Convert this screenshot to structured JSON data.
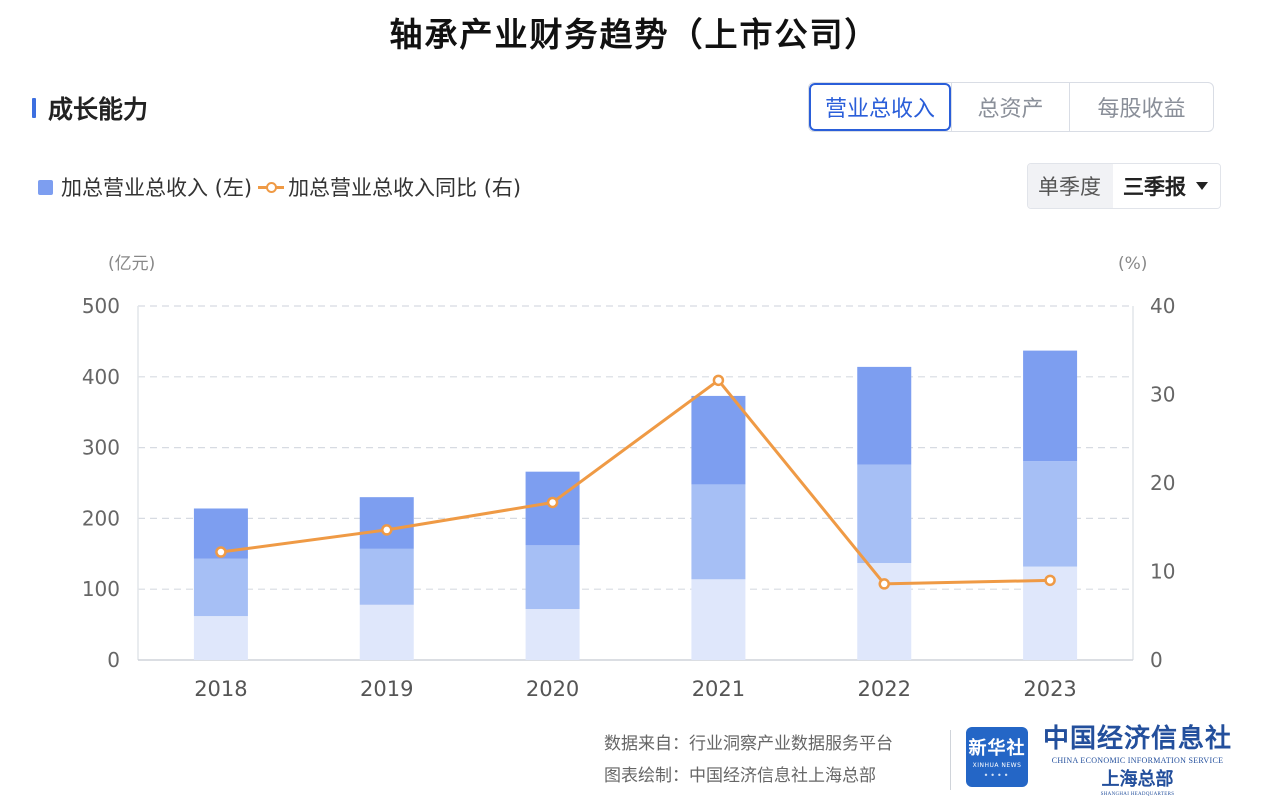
{
  "page": {
    "title": "轴承产业财务趋势（上市公司）",
    "section_title": "成长能力",
    "tabs": [
      {
        "label": "营业总收入",
        "active": true
      },
      {
        "label": "总资产",
        "active": false
      },
      {
        "label": "每股收益",
        "active": false
      }
    ],
    "period_label": "单季度",
    "period_selected": "三季报"
  },
  "colors": {
    "bar_q3": "#7d9ef0",
    "bar_q2": "#a6bff5",
    "bar_q1": "#dfe7fb",
    "line": "#ef9a45",
    "accent": "#2a5ed9"
  },
  "chart_data": {
    "type": "bar",
    "categories": [
      "2018",
      "2019",
      "2020",
      "2021",
      "2022",
      "2023"
    ],
    "series": [
      {
        "name": "加总营业总收入 (左)",
        "type": "stacked-bar",
        "axis": "left",
        "stack_totals": [
          [
            62,
            143,
            214
          ],
          [
            78,
            157,
            230
          ],
          [
            72,
            162,
            266
          ],
          [
            114,
            248,
            373
          ],
          [
            137,
            276,
            414
          ],
          [
            132,
            281,
            437
          ]
        ]
      },
      {
        "name": "加总营业总收入同比 (右)",
        "type": "line",
        "axis": "right",
        "values": [
          12.2,
          14.7,
          17.8,
          31.6,
          8.6,
          9.0
        ]
      }
    ],
    "legend": [
      "加总营业总收入 (左)",
      "加总营业总收入同比 (右)"
    ],
    "y_left": {
      "unit": "(亿元)",
      "min": 0,
      "max": 500,
      "ticks": [
        "0",
        "100",
        "200",
        "300",
        "400",
        "500"
      ]
    },
    "y_right": {
      "unit": "(%)",
      "min": 0,
      "max": 40,
      "ticks": [
        "0",
        "10",
        "20",
        "30",
        "40"
      ]
    },
    "grid": true
  },
  "footer": {
    "source_line": "数据来自：行业洞察产业数据服务平台",
    "credit_line": "图表绘制：中国经济信息社上海总部",
    "xinhua_cn": "新华社",
    "xinhua_en": "XINHUA NEWS",
    "cei_cn": "中国经济信息社",
    "cei_en": "CHINA ECONOMIC INFORMATION SERVICE",
    "cei_branch": "上海总部",
    "cei_branch_en": "SHANGHAI HEADQUARTERS"
  }
}
